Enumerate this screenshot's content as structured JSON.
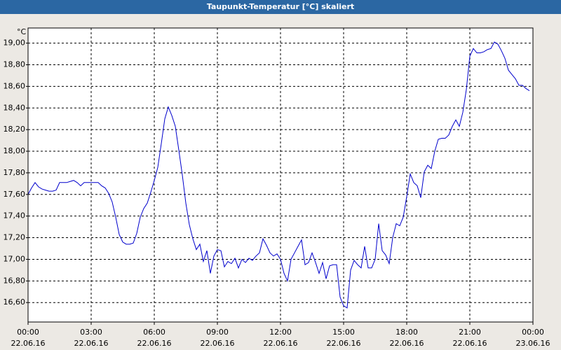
{
  "chart_data": {
    "type": "line",
    "title": "Taupunkt-Temperatur [°C] skaliert",
    "y_unit": "°C",
    "grid": true,
    "xlim": [
      "22.06.16 00:00",
      "23.06.16 00:00"
    ],
    "xticks": [
      {
        "value": "22.06.16 00:00",
        "label": "00:00",
        "sublabel": "22.06.16"
      },
      {
        "value": "22.06.16 03:00",
        "label": "03:00",
        "sublabel": "22.06.16"
      },
      {
        "value": "22.06.16 06:00",
        "label": "06:00",
        "sublabel": "22.06.16"
      },
      {
        "value": "22.06.16 09:00",
        "label": "09:00",
        "sublabel": "22.06.16"
      },
      {
        "value": "22.06.16 12:00",
        "label": "12:00",
        "sublabel": "22.06.16"
      },
      {
        "value": "22.06.16 15:00",
        "label": "15:00",
        "sublabel": "22.06.16"
      },
      {
        "value": "22.06.16 18:00",
        "label": "18:00",
        "sublabel": "22.06.16"
      },
      {
        "value": "22.06.16 21:00",
        "label": "21:00",
        "sublabel": "22.06.16"
      },
      {
        "value": "23.06.16 00:00",
        "label": "00:00",
        "sublabel": "23.06.16"
      }
    ],
    "ylim": [
      16.42,
      19.14
    ],
    "yticks": [
      {
        "value": 16.6,
        "label": "16,60"
      },
      {
        "value": 16.8,
        "label": "16,80"
      },
      {
        "value": 17.0,
        "label": "17,00"
      },
      {
        "value": 17.2,
        "label": "17,20"
      },
      {
        "value": 17.4,
        "label": "17,40"
      },
      {
        "value": 17.6,
        "label": "17,60"
      },
      {
        "value": 17.8,
        "label": "17,80"
      },
      {
        "value": 18.0,
        "label": "18,00"
      },
      {
        "value": 18.2,
        "label": "18,20"
      },
      {
        "value": 18.4,
        "label": "18,40"
      },
      {
        "value": 18.6,
        "label": "18,60"
      },
      {
        "value": 18.8,
        "label": "18,80"
      },
      {
        "value": 19.0,
        "label": "19,00"
      }
    ],
    "x": [
      "22.06.16 00:00",
      "22.06.16 00:10",
      "22.06.16 00:20",
      "22.06.16 00:30",
      "22.06.16 00:40",
      "22.06.16 00:50",
      "22.06.16 01:00",
      "22.06.16 01:10",
      "22.06.16 01:20",
      "22.06.16 01:30",
      "22.06.16 01:40",
      "22.06.16 01:50",
      "22.06.16 02:00",
      "22.06.16 02:10",
      "22.06.16 02:20",
      "22.06.16 02:30",
      "22.06.16 02:40",
      "22.06.16 02:50",
      "22.06.16 03:00",
      "22.06.16 03:10",
      "22.06.16 03:20",
      "22.06.16 03:30",
      "22.06.16 03:40",
      "22.06.16 03:50",
      "22.06.16 04:00",
      "22.06.16 04:10",
      "22.06.16 04:20",
      "22.06.16 04:30",
      "22.06.16 04:40",
      "22.06.16 04:50",
      "22.06.16 05:00",
      "22.06.16 05:10",
      "22.06.16 05:20",
      "22.06.16 05:30",
      "22.06.16 05:40",
      "22.06.16 05:50",
      "22.06.16 06:00",
      "22.06.16 06:10",
      "22.06.16 06:20",
      "22.06.16 06:30",
      "22.06.16 06:40",
      "22.06.16 06:50",
      "22.06.16 07:00",
      "22.06.16 07:10",
      "22.06.16 07:20",
      "22.06.16 07:30",
      "22.06.16 07:40",
      "22.06.16 07:50",
      "22.06.16 08:00",
      "22.06.16 08:10",
      "22.06.16 08:20",
      "22.06.16 08:30",
      "22.06.16 08:40",
      "22.06.16 08:50",
      "22.06.16 09:00",
      "22.06.16 09:10",
      "22.06.16 09:20",
      "22.06.16 09:30",
      "22.06.16 09:40",
      "22.06.16 09:50",
      "22.06.16 10:00",
      "22.06.16 10:10",
      "22.06.16 10:20",
      "22.06.16 10:30",
      "22.06.16 10:40",
      "22.06.16 10:50",
      "22.06.16 11:00",
      "22.06.16 11:10",
      "22.06.16 11:20",
      "22.06.16 11:30",
      "22.06.16 11:40",
      "22.06.16 11:50",
      "22.06.16 12:00",
      "22.06.16 12:10",
      "22.06.16 12:20",
      "22.06.16 12:30",
      "22.06.16 12:40",
      "22.06.16 12:50",
      "22.06.16 13:00",
      "22.06.16 13:10",
      "22.06.16 13:20",
      "22.06.16 13:30",
      "22.06.16 13:40",
      "22.06.16 13:50",
      "22.06.16 14:00",
      "22.06.16 14:10",
      "22.06.16 14:20",
      "22.06.16 14:30",
      "22.06.16 14:40",
      "22.06.16 14:50",
      "22.06.16 15:00",
      "22.06.16 15:10",
      "22.06.16 15:20",
      "22.06.16 15:30",
      "22.06.16 15:40",
      "22.06.16 15:50",
      "22.06.16 16:00",
      "22.06.16 16:10",
      "22.06.16 16:20",
      "22.06.16 16:30",
      "22.06.16 16:40",
      "22.06.16 16:50",
      "22.06.16 17:00",
      "22.06.16 17:10",
      "22.06.16 17:20",
      "22.06.16 17:30",
      "22.06.16 17:40",
      "22.06.16 17:50",
      "22.06.16 18:00",
      "22.06.16 18:10",
      "22.06.16 18:20",
      "22.06.16 18:30",
      "22.06.16 18:40",
      "22.06.16 18:50",
      "22.06.16 19:00",
      "22.06.16 19:10",
      "22.06.16 19:20",
      "22.06.16 19:30",
      "22.06.16 19:40",
      "22.06.16 19:50",
      "22.06.16 20:00",
      "22.06.16 20:10",
      "22.06.16 20:20",
      "22.06.16 20:30",
      "22.06.16 20:40",
      "22.06.16 20:50",
      "22.06.16 21:00",
      "22.06.16 21:10",
      "22.06.16 21:20",
      "22.06.16 21:30",
      "22.06.16 21:40",
      "22.06.16 21:50",
      "22.06.16 22:00",
      "22.06.16 22:10",
      "22.06.16 22:20",
      "22.06.16 22:30",
      "22.06.16 22:40",
      "22.06.16 22:50",
      "22.06.16 23:00",
      "22.06.16 23:10",
      "22.06.16 23:20",
      "22.06.16 23:30",
      "22.06.16 23:40",
      "22.06.16 23:50"
    ],
    "series": [
      {
        "name": "Taupunkt-Temperatur",
        "color": "#0000cc",
        "values": [
          17.6,
          17.66,
          17.71,
          17.67,
          17.65,
          17.64,
          17.63,
          17.63,
          17.64,
          17.71,
          17.71,
          17.71,
          17.72,
          17.73,
          17.71,
          17.68,
          17.71,
          17.71,
          17.71,
          17.71,
          17.71,
          17.68,
          17.66,
          17.61,
          17.53,
          17.39,
          17.23,
          17.16,
          17.14,
          17.14,
          17.15,
          17.24,
          17.39,
          17.47,
          17.52,
          17.62,
          17.73,
          17.85,
          18.07,
          18.3,
          18.41,
          18.33,
          18.23,
          18.01,
          17.78,
          17.52,
          17.32,
          17.19,
          17.09,
          17.14,
          16.98,
          17.08,
          16.87,
          17.03,
          17.09,
          17.08,
          16.93,
          16.98,
          16.96,
          17.01,
          16.92,
          17.0,
          16.97,
          17.01,
          16.99,
          17.03,
          17.06,
          17.19,
          17.13,
          17.06,
          17.03,
          17.05,
          17.0,
          16.87,
          16.8,
          17.0,
          17.06,
          17.12,
          17.18,
          16.95,
          16.97,
          17.06,
          16.97,
          16.87,
          16.97,
          16.82,
          16.94,
          16.95,
          16.95,
          16.65,
          16.57,
          16.55,
          16.9,
          16.99,
          16.95,
          16.92,
          17.12,
          16.92,
          16.92,
          17.0,
          17.33,
          17.08,
          17.04,
          16.96,
          17.2,
          17.33,
          17.31,
          17.39,
          17.58,
          17.79,
          17.71,
          17.68,
          17.57,
          17.81,
          17.87,
          17.84,
          18.0,
          18.11,
          18.12,
          18.12,
          18.15,
          18.23,
          18.29,
          18.23,
          18.36,
          18.57,
          18.88,
          18.95,
          18.91,
          18.91,
          18.92,
          18.94,
          18.95,
          19.01,
          18.99,
          18.93,
          18.86,
          18.75,
          18.71,
          18.67,
          18.61,
          18.61,
          18.58,
          18.56
        ]
      }
    ]
  }
}
